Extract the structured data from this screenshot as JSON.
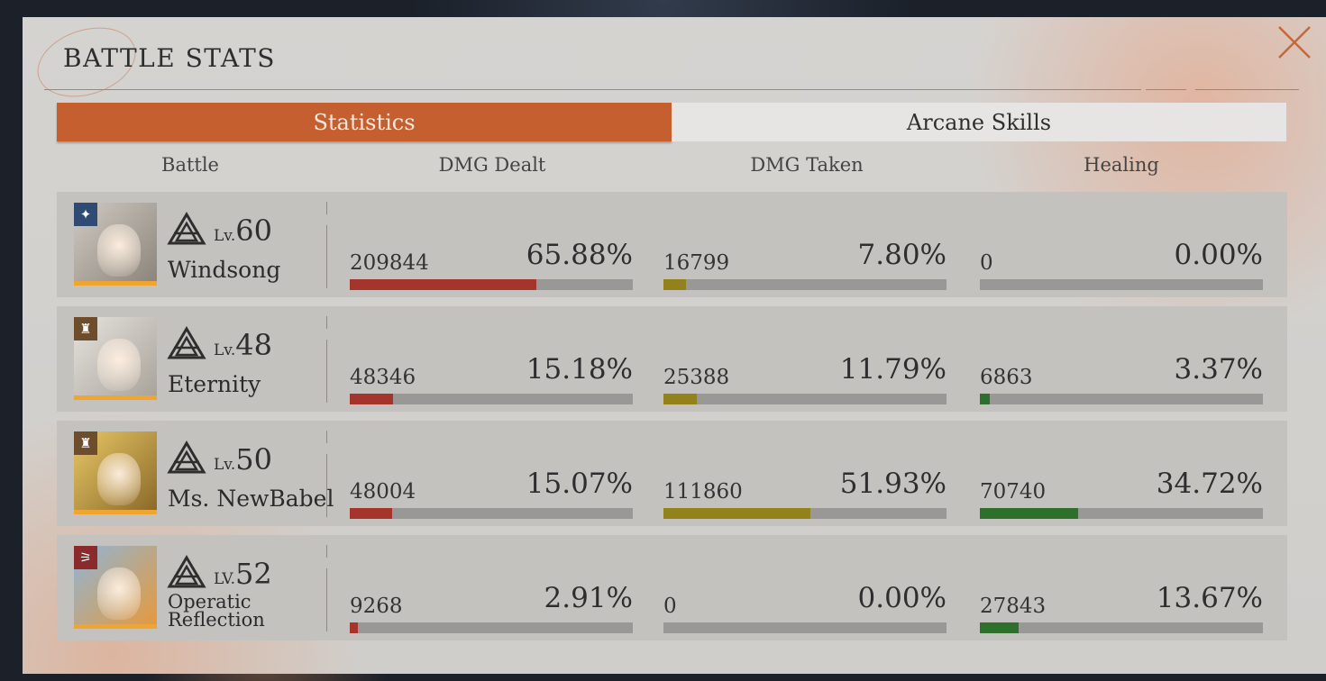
{
  "title": "BATTLE STATS",
  "close_icon": "close-x-icon",
  "tabs": [
    {
      "label": "Statistics",
      "active": true
    },
    {
      "label": "Arcane Skills",
      "active": false
    }
  ],
  "columns": {
    "battle": "Battle",
    "dmg_dealt": "DMG Dealt",
    "dmg_taken": "DMG Taken",
    "healing": "Healing"
  },
  "colors": {
    "accent": "#c65f2f",
    "dmg_dealt": "#a5342a",
    "dmg_taken": "#93811b",
    "healing": "#2f6f2c",
    "rarity": "#f1a531"
  },
  "characters": [
    {
      "name": "Windsong",
      "lv_prefix": "Lv.",
      "level": "60",
      "badge_icon": "star-sparkle-icon",
      "badge_color": "#2f4b73",
      "portrait_colors": [
        "#cfcac2",
        "#8d857c"
      ],
      "dmg_dealt": {
        "value": "209844",
        "percent": "65.88%",
        "fraction": 0.6588
      },
      "dmg_taken": {
        "value": "16799",
        "percent": "7.80%",
        "fraction": 0.078
      },
      "healing": {
        "value": "0",
        "percent": "0.00%",
        "fraction": 0
      }
    },
    {
      "name": "Eternity",
      "lv_prefix": "Lv.",
      "level": "48",
      "badge_icon": "hand-bag-icon",
      "badge_color": "#6d4d2b",
      "portrait_colors": [
        "#e6e2dd",
        "#a9a39b"
      ],
      "dmg_dealt": {
        "value": "48346",
        "percent": "15.18%",
        "fraction": 0.1518
      },
      "dmg_taken": {
        "value": "25388",
        "percent": "11.79%",
        "fraction": 0.1179
      },
      "healing": {
        "value": "6863",
        "percent": "3.37%",
        "fraction": 0.0337
      }
    },
    {
      "name": "Ms. NewBabel",
      "lv_prefix": "Lv.",
      "level": "50",
      "badge_icon": "hand-bag-icon",
      "badge_color": "#6d4d2b",
      "portrait_colors": [
        "#e8c766",
        "#8b6a2a"
      ],
      "dmg_dealt": {
        "value": "48004",
        "percent": "15.07%",
        "fraction": 0.1507
      },
      "dmg_taken": {
        "value": "111860",
        "percent": "51.93%",
        "fraction": 0.5193
      },
      "healing": {
        "value": "70740",
        "percent": "34.72%",
        "fraction": 0.3472
      }
    },
    {
      "name": "Operatic Reflection",
      "lv_prefix": "LV.",
      "level": "52",
      "badge_icon": "claw-mark-icon",
      "badge_color": "#8b2a2a",
      "portrait_colors": [
        "#8fb5d8",
        "#e59a3d"
      ],
      "dmg_dealt": {
        "value": "9268",
        "percent": "2.91%",
        "fraction": 0.0291
      },
      "dmg_taken": {
        "value": "0",
        "percent": "0.00%",
        "fraction": 0
      },
      "healing": {
        "value": "27843",
        "percent": "13.67%",
        "fraction": 0.1367
      }
    }
  ]
}
